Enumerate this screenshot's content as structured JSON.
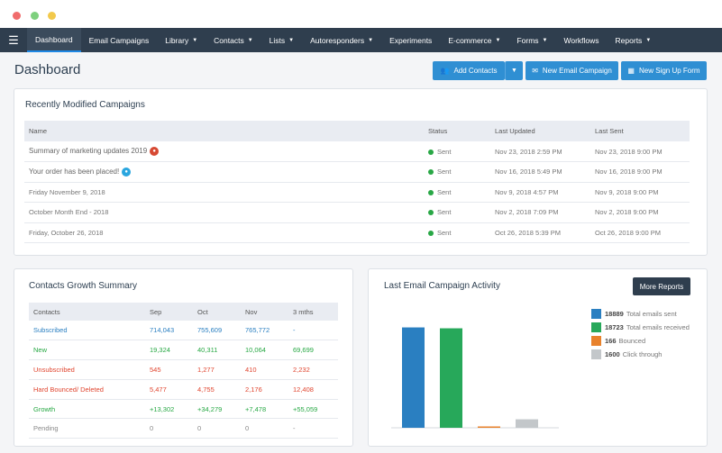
{
  "nav": {
    "items": [
      {
        "label": "Dashboard"
      },
      {
        "label": "Email Campaigns"
      },
      {
        "label": "Library"
      },
      {
        "label": "Contacts"
      },
      {
        "label": "Lists"
      },
      {
        "label": "Autoresponders"
      },
      {
        "label": "Experiments"
      },
      {
        "label": "E-commerce"
      },
      {
        "label": "Forms"
      },
      {
        "label": "Workflows"
      },
      {
        "label": "Reports"
      }
    ]
  },
  "header": {
    "title": "Dashboard",
    "add_contacts": "Add Contacts",
    "new_email_campaign": "New Email Campaign",
    "new_signup_form": "New Sign Up Form"
  },
  "campaigns": {
    "title": "Recently Modified Campaigns",
    "columns": [
      "Name",
      "Status",
      "Last Updated",
      "Last Sent"
    ],
    "rows": [
      {
        "name": "Summary of marketing updates 2019",
        "status": "Sent",
        "updated": "Nov 23, 2018 2:59 PM",
        "sent": "Nov 23, 2018 9:00 PM"
      },
      {
        "name": "Your order has been placed!",
        "status": "Sent",
        "updated": "Nov 16, 2018 5:49 PM",
        "sent": "Nov 16, 2018 9:00 PM"
      },
      {
        "name": "Friday November 9, 2018",
        "status": "Sent",
        "updated": "Nov 9, 2018 4:57 PM",
        "sent": "Nov 9, 2018 9:00 PM"
      },
      {
        "name": "October Month End - 2018",
        "status": "Sent",
        "updated": "Nov 2, 2018 7:09 PM",
        "sent": "Nov 2, 2018 9:00 PM"
      },
      {
        "name": "Friday, October 26, 2018",
        "status": "Sent",
        "updated": "Oct 26, 2018 5:39 PM",
        "sent": "Oct 26, 2018 9:00 PM"
      }
    ]
  },
  "growth": {
    "title": "Contacts Growth Summary",
    "columns": [
      "Contacts",
      "Sep",
      "Oct",
      "Nov",
      "3 mths"
    ],
    "rows": [
      {
        "label": "Subscribed",
        "sep": "714,043",
        "oct": "755,609",
        "nov": "765,772",
        "three": "-"
      },
      {
        "label": "New",
        "sep": "19,324",
        "oct": "40,311",
        "nov": "10,064",
        "three": "69,699"
      },
      {
        "label": "Unsubscribed",
        "sep": "545",
        "oct": "1,277",
        "nov": "410",
        "three": "2,232"
      },
      {
        "label": "Hard Bounced/ Deleted",
        "sep": "5,477",
        "oct": "4,755",
        "nov": "2,176",
        "three": "12,408"
      },
      {
        "label": "Growth",
        "sep": "+13,302",
        "oct": "+34,279",
        "nov": "+7,478",
        "three": "+55,059"
      },
      {
        "label": "Pending",
        "sep": "0",
        "oct": "0",
        "nov": "0",
        "three": "-"
      }
    ]
  },
  "activity": {
    "title": "Last Email Campaign Activity",
    "more_reports": "More Reports"
  },
  "chart_data": {
    "type": "bar",
    "categories": [
      "Total emails sent",
      "Total emails received",
      "Bounced",
      "Click through"
    ],
    "values": [
      18889,
      18723,
      166,
      1600
    ],
    "colors": [
      "#2a7fc1",
      "#27a85a",
      "#e8822c",
      "#c3c7ca"
    ],
    "ylim": [
      0,
      20000
    ],
    "legend": [
      {
        "value": "18889",
        "label": "Total emails sent"
      },
      {
        "value": "18723",
        "label": "Total emails received"
      },
      {
        "value": "166",
        "label": "Bounced"
      },
      {
        "value": "1600",
        "label": "Click through"
      }
    ]
  }
}
